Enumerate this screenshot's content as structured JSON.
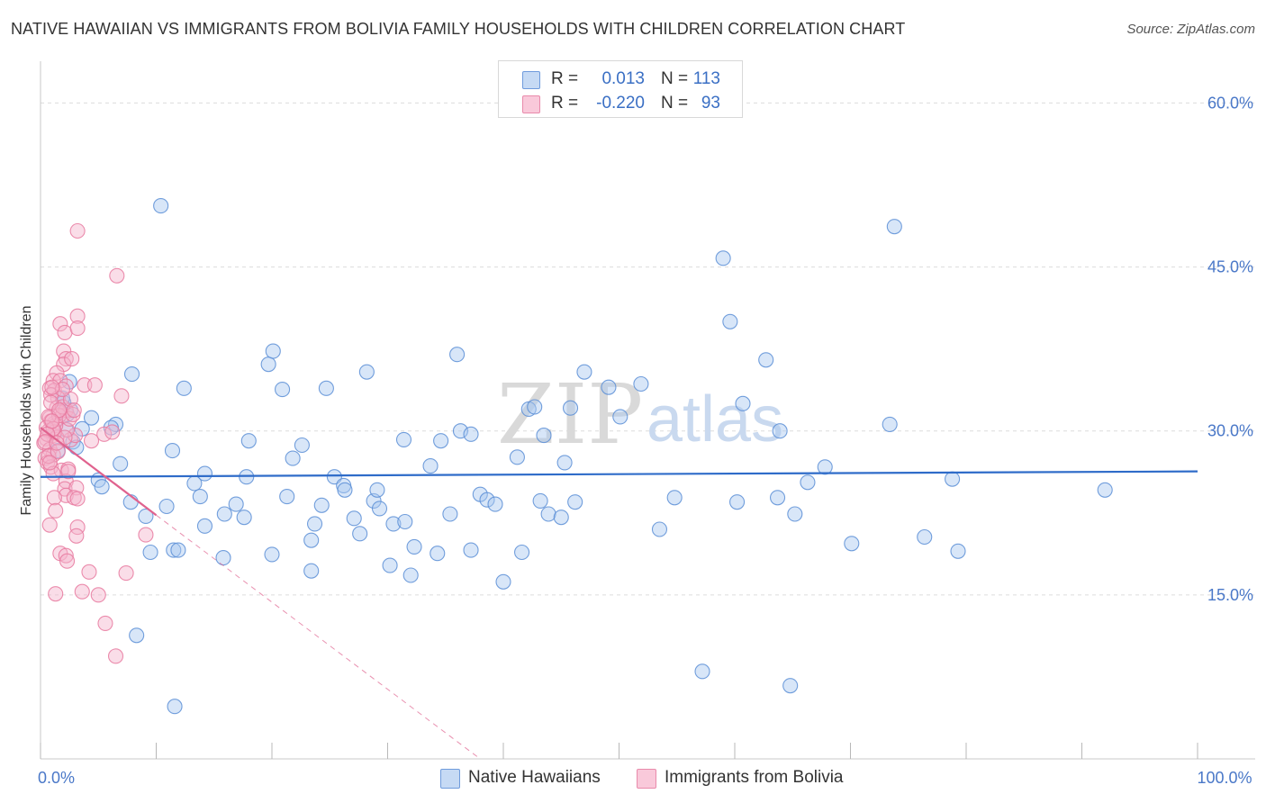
{
  "title": "NATIVE HAWAIIAN VS IMMIGRANTS FROM BOLIVIA FAMILY HOUSEHOLDS WITH CHILDREN CORRELATION CHART",
  "source": "Source: ZipAtlas.com",
  "watermark": {
    "zip": "ZIP",
    "atlas": "atlas"
  },
  "colors": {
    "blue_fill": "#a9c8f0",
    "blue_stroke": "#5b8ed6",
    "blue_line": "#2f6cc9",
    "pink_fill": "#f5b3cb",
    "pink_stroke": "#e8799f",
    "pink_line": "#e0628e",
    "grid": "#dcdcdc",
    "tick_text": "#4a78c8"
  },
  "stats": [
    {
      "series": "Native Hawaiians",
      "r_label": "R =",
      "r_value": "0.013",
      "n_label": "N =",
      "n_value": "113"
    },
    {
      "series": "Immigrants from Bolivia",
      "r_label": "R =",
      "r_value": "-0.220",
      "n_label": "N =",
      "n_value": "93"
    }
  ],
  "legend": [
    {
      "label": "Native Hawaiians"
    },
    {
      "label": "Immigrants from Bolivia"
    }
  ],
  "chart_data": {
    "type": "scatter",
    "title": "NATIVE HAWAIIAN VS IMMIGRANTS FROM BOLIVIA FAMILY HOUSEHOLDS WITH CHILDREN CORRELATION CHART",
    "xlabel": "",
    "ylabel": "Family Households with Children",
    "xlim": [
      0,
      100
    ],
    "ylim": [
      0,
      63
    ],
    "x_tick_labels": [
      {
        "value": 0,
        "label": "0.0%"
      },
      {
        "value": 100,
        "label": "100.0%"
      }
    ],
    "y_ticks": [
      {
        "value": 15,
        "label": "15.0%"
      },
      {
        "value": 30,
        "label": "30.0%"
      },
      {
        "value": 45,
        "label": "45.0%"
      },
      {
        "value": 60,
        "label": "60.0%"
      }
    ],
    "x_minor_ticks": [
      0,
      10,
      20,
      30,
      40,
      50,
      60,
      70,
      80,
      90,
      100
    ],
    "grid": true,
    "series": [
      {
        "name": "Native Hawaiians",
        "color": "#a9c8f0",
        "trend": {
          "x": [
            0,
            100
          ],
          "y": [
            25.8,
            26.3
          ],
          "style": "solid"
        },
        "points": [
          [
            10.4,
            50.6
          ],
          [
            2.5,
            34.5
          ],
          [
            2.0,
            32.6
          ],
          [
            2.2,
            30.1
          ],
          [
            1.5,
            28.2
          ],
          [
            2.3,
            31.5
          ],
          [
            4.4,
            31.2
          ],
          [
            6.5,
            30.6
          ],
          [
            6.9,
            27.0
          ],
          [
            5.0,
            25.5
          ],
          [
            5.3,
            24.9
          ],
          [
            7.9,
            35.2
          ],
          [
            9.1,
            22.2
          ],
          [
            7.8,
            23.5
          ],
          [
            9.5,
            18.9
          ],
          [
            11.5,
            19.1
          ],
          [
            10.9,
            23.1
          ],
          [
            11.9,
            19.1
          ],
          [
            11.4,
            28.2
          ],
          [
            12.4,
            33.9
          ],
          [
            13.3,
            25.2
          ],
          [
            13.8,
            24.0
          ],
          [
            14.2,
            21.3
          ],
          [
            14.2,
            26.1
          ],
          [
            15.8,
            18.4
          ],
          [
            15.9,
            22.4
          ],
          [
            16.9,
            23.3
          ],
          [
            17.8,
            25.8
          ],
          [
            17.6,
            22.1
          ],
          [
            18.0,
            29.1
          ],
          [
            19.7,
            36.1
          ],
          [
            20.1,
            37.3
          ],
          [
            20.0,
            18.7
          ],
          [
            20.9,
            33.8
          ],
          [
            21.3,
            24.0
          ],
          [
            21.8,
            27.5
          ],
          [
            22.6,
            28.7
          ],
          [
            23.4,
            20.0
          ],
          [
            23.4,
            17.2
          ],
          [
            23.7,
            21.5
          ],
          [
            24.3,
            23.2
          ],
          [
            24.7,
            33.9
          ],
          [
            25.4,
            25.8
          ],
          [
            26.2,
            25.0
          ],
          [
            26.3,
            24.6
          ],
          [
            27.1,
            22.0
          ],
          [
            27.6,
            20.6
          ],
          [
            28.2,
            35.4
          ],
          [
            28.8,
            23.6
          ],
          [
            29.1,
            24.6
          ],
          [
            29.3,
            22.9
          ],
          [
            30.2,
            17.7
          ],
          [
            30.5,
            21.5
          ],
          [
            31.5,
            21.7
          ],
          [
            31.4,
            29.2
          ],
          [
            32.3,
            19.4
          ],
          [
            32.0,
            16.8
          ],
          [
            33.7,
            26.8
          ],
          [
            34.3,
            18.8
          ],
          [
            34.6,
            29.1
          ],
          [
            35.4,
            22.4
          ],
          [
            36.0,
            37.0
          ],
          [
            36.3,
            30.0
          ],
          [
            37.2,
            29.7
          ],
          [
            37.2,
            19.1
          ],
          [
            38.0,
            24.2
          ],
          [
            38.6,
            23.7
          ],
          [
            39.3,
            23.3
          ],
          [
            40.0,
            16.2
          ],
          [
            41.2,
            27.6
          ],
          [
            41.6,
            18.9
          ],
          [
            42.2,
            32.0
          ],
          [
            42.7,
            32.2
          ],
          [
            43.2,
            23.6
          ],
          [
            43.9,
            22.4
          ],
          [
            43.5,
            29.6
          ],
          [
            45.0,
            22.1
          ],
          [
            45.3,
            27.1
          ],
          [
            45.8,
            32.1
          ],
          [
            46.2,
            23.5
          ],
          [
            47.0,
            35.4
          ],
          [
            49.1,
            34.0
          ],
          [
            50.1,
            31.3
          ],
          [
            51.9,
            34.3
          ],
          [
            53.5,
            21.0
          ],
          [
            54.8,
            23.9
          ],
          [
            57.2,
            8.0
          ],
          [
            59.0,
            45.8
          ],
          [
            59.6,
            40.0
          ],
          [
            60.2,
            23.5
          ],
          [
            60.7,
            32.5
          ],
          [
            62.7,
            36.5
          ],
          [
            63.7,
            23.9
          ],
          [
            63.9,
            30.0
          ],
          [
            64.8,
            6.7
          ],
          [
            65.2,
            22.4
          ],
          [
            66.3,
            25.3
          ],
          [
            67.8,
            26.7
          ],
          [
            70.1,
            19.7
          ],
          [
            73.4,
            30.6
          ],
          [
            73.8,
            48.7
          ],
          [
            76.4,
            20.3
          ],
          [
            78.8,
            25.6
          ],
          [
            79.3,
            19.0
          ],
          [
            92.0,
            24.6
          ],
          [
            11.6,
            4.8
          ],
          [
            8.3,
            11.3
          ],
          [
            2.8,
            29.0
          ],
          [
            3.1,
            28.5
          ],
          [
            1.9,
            33.0
          ],
          [
            2.6,
            31.9
          ],
          [
            3.6,
            30.2
          ],
          [
            6.1,
            30.3
          ]
        ]
      },
      {
        "name": "Immigrants from Bolivia",
        "color": "#f5b3cb",
        "trend": {
          "x": [
            0,
            10
          ],
          "y": [
            30.3,
            22.3
          ],
          "style": "solid",
          "extended_x": [
            10,
            38
          ],
          "extended_y": [
            22.3,
            0
          ],
          "extended_style": "dashed"
        },
        "points": [
          [
            3.2,
            48.3
          ],
          [
            6.6,
            44.2
          ],
          [
            3.2,
            40.5
          ],
          [
            1.7,
            39.8
          ],
          [
            2.1,
            39.0
          ],
          [
            3.2,
            39.4
          ],
          [
            2.0,
            37.3
          ],
          [
            2.2,
            36.6
          ],
          [
            2.0,
            36.1
          ],
          [
            2.7,
            36.6
          ],
          [
            1.4,
            35.3
          ],
          [
            1.1,
            34.6
          ],
          [
            1.7,
            34.6
          ],
          [
            0.8,
            33.9
          ],
          [
            1.2,
            33.7
          ],
          [
            1.5,
            33.0
          ],
          [
            0.9,
            33.3
          ],
          [
            2.2,
            34.1
          ],
          [
            3.8,
            34.2
          ],
          [
            4.7,
            34.2
          ],
          [
            7.0,
            33.2
          ],
          [
            1.4,
            32.1
          ],
          [
            1.6,
            31.7
          ],
          [
            1.9,
            31.4
          ],
          [
            2.2,
            31.9
          ],
          [
            0.8,
            31.2
          ],
          [
            1.2,
            30.7
          ],
          [
            0.7,
            30.0
          ],
          [
            1.1,
            29.6
          ],
          [
            0.5,
            29.3
          ],
          [
            0.3,
            28.9
          ],
          [
            0.8,
            28.3
          ],
          [
            1.1,
            27.8
          ],
          [
            0.4,
            27.5
          ],
          [
            0.6,
            27.1
          ],
          [
            0.9,
            26.7
          ],
          [
            1.8,
            26.4
          ],
          [
            2.4,
            26.5
          ],
          [
            2.2,
            25.4
          ],
          [
            2.1,
            24.7
          ],
          [
            3.1,
            24.8
          ],
          [
            2.2,
            24.1
          ],
          [
            2.9,
            23.9
          ],
          [
            3.2,
            23.8
          ],
          [
            1.2,
            23.9
          ],
          [
            0.8,
            21.4
          ],
          [
            3.2,
            21.2
          ],
          [
            3.1,
            20.4
          ],
          [
            1.3,
            22.7
          ],
          [
            5.5,
            29.7
          ],
          [
            6.2,
            29.9
          ],
          [
            4.4,
            29.1
          ],
          [
            2.6,
            29.2
          ],
          [
            3.0,
            29.6
          ],
          [
            2.3,
            30.1
          ],
          [
            1.3,
            30.5
          ],
          [
            1.4,
            29.4
          ],
          [
            0.9,
            30.9
          ],
          [
            1.6,
            31.4
          ],
          [
            1.9,
            32.2
          ],
          [
            2.5,
            31.1
          ],
          [
            0.9,
            32.6
          ],
          [
            0.7,
            31.3
          ],
          [
            1.2,
            29.9
          ],
          [
            0.5,
            30.3
          ],
          [
            0.7,
            27.7
          ],
          [
            1.1,
            26.1
          ],
          [
            1.7,
            18.8
          ],
          [
            2.2,
            18.6
          ],
          [
            2.3,
            18.1
          ],
          [
            4.2,
            17.1
          ],
          [
            7.4,
            17.0
          ],
          [
            9.1,
            20.5
          ],
          [
            1.3,
            15.1
          ],
          [
            3.6,
            15.3
          ],
          [
            5.0,
            15.0
          ],
          [
            5.6,
            12.4
          ],
          [
            6.5,
            9.4
          ],
          [
            1.1,
            30.2
          ],
          [
            2.8,
            31.5
          ],
          [
            1.5,
            28.1
          ],
          [
            0.6,
            29.7
          ],
          [
            2.6,
            32.9
          ],
          [
            1.9,
            33.8
          ],
          [
            1.0,
            34.0
          ],
          [
            0.4,
            29.0
          ],
          [
            0.8,
            27.1
          ],
          [
            1.6,
            31.9
          ],
          [
            2.1,
            29.4
          ],
          [
            1.0,
            30.9
          ],
          [
            2.9,
            31.9
          ],
          [
            1.4,
            28.9
          ],
          [
            2.4,
            26.3
          ]
        ]
      }
    ]
  }
}
